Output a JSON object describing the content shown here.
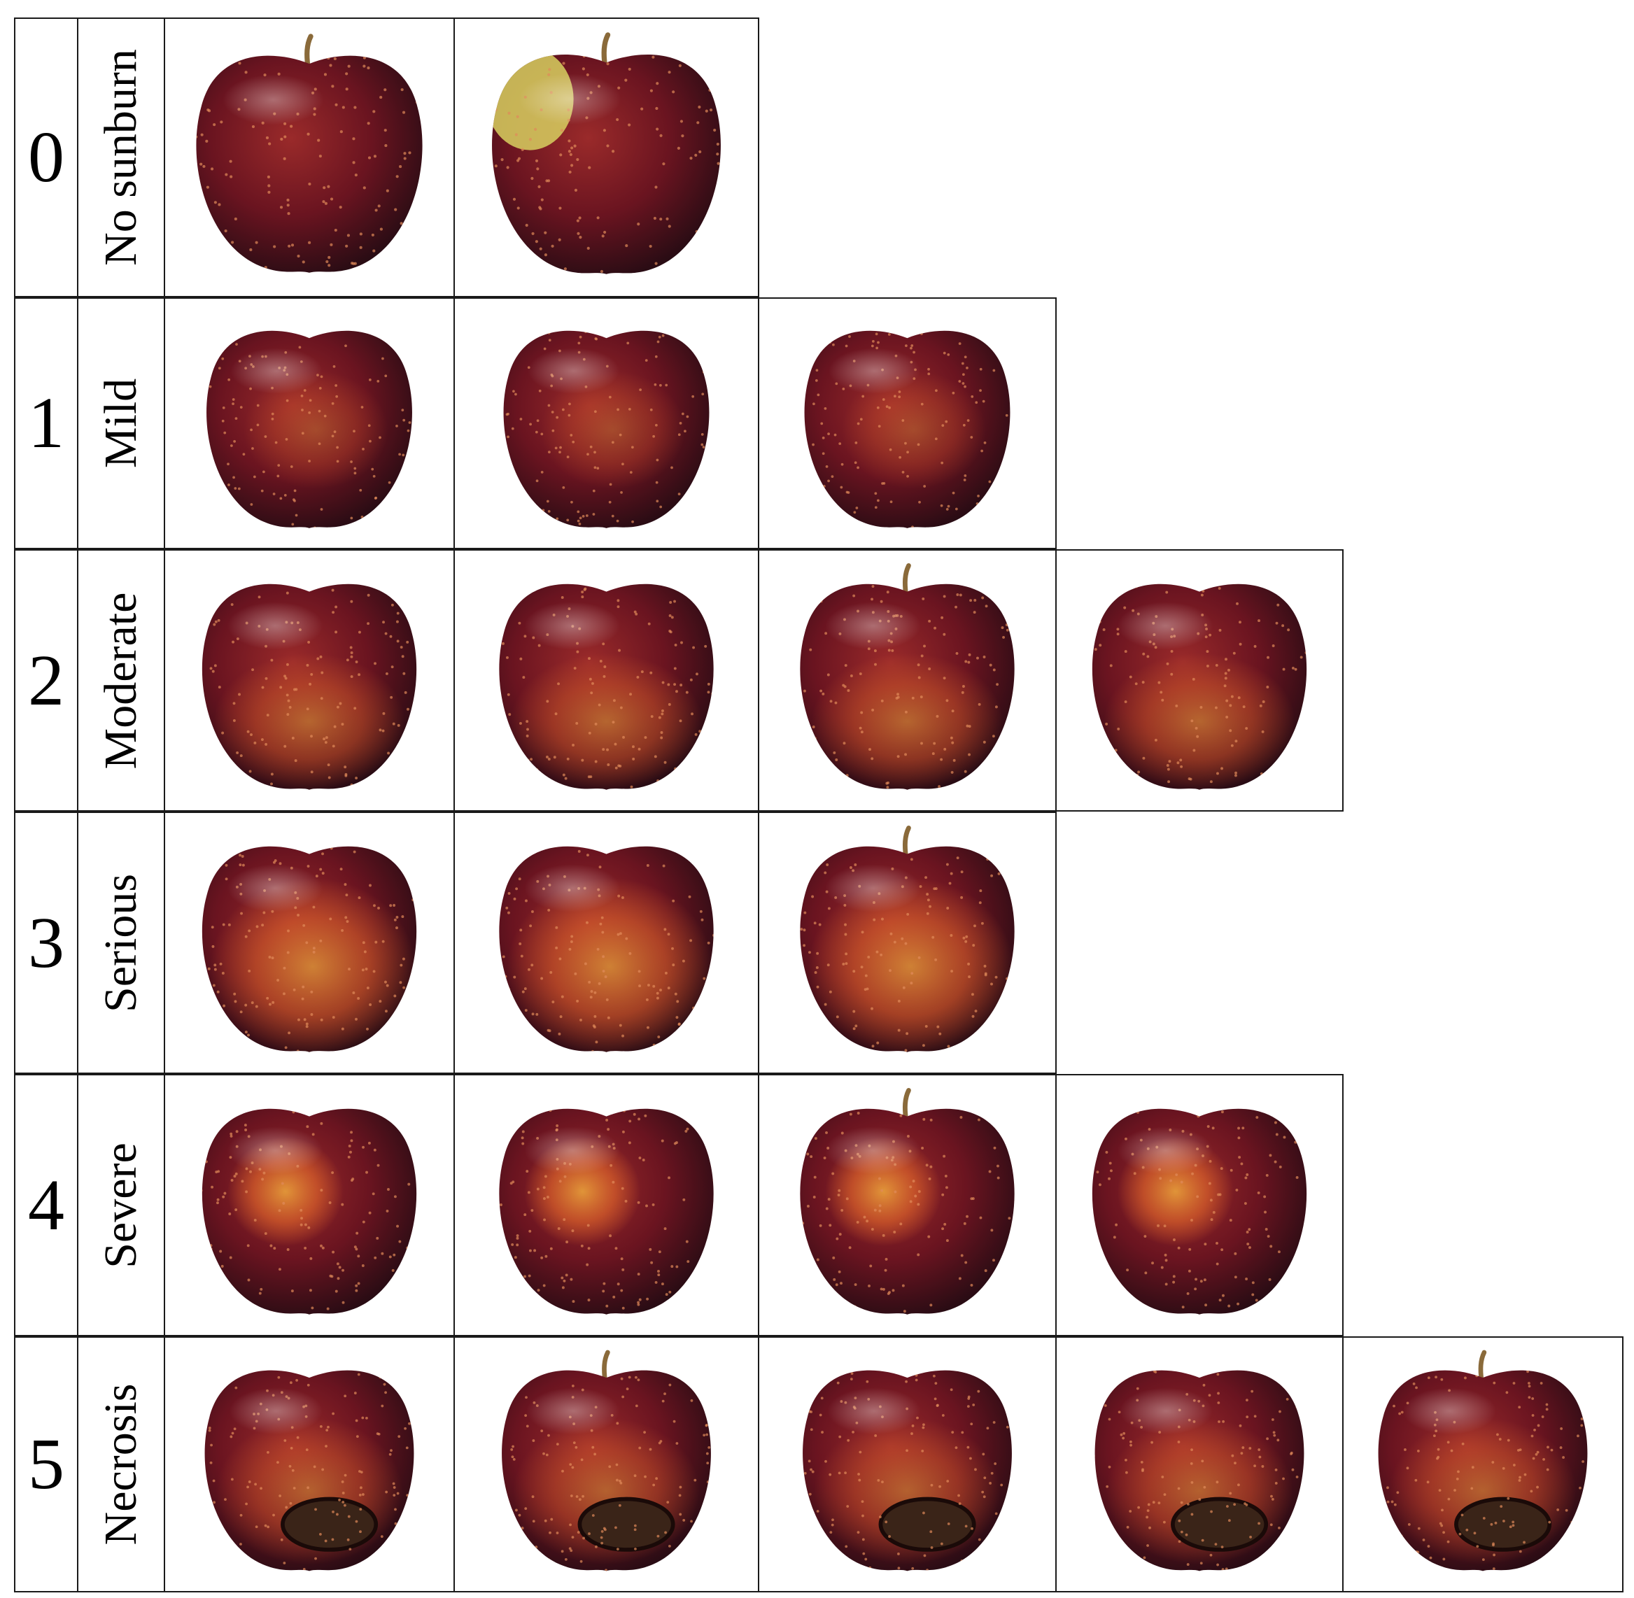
{
  "rows": [
    {
      "grade": "0",
      "label": "No sunburn",
      "photos": [
        {
          "alt": "apple-no-sunburn-1",
          "burn": "none",
          "stem": true,
          "cheek": "none"
        },
        {
          "alt": "apple-no-sunburn-2",
          "burn": "none",
          "stem": true,
          "cheek": "yellow-top-left"
        }
      ]
    },
    {
      "grade": "1",
      "label": "Mild",
      "photos": [
        {
          "alt": "apple-mild-1",
          "burn": "mild",
          "stem": false,
          "cheek": "none"
        },
        {
          "alt": "apple-mild-2",
          "burn": "mild",
          "stem": false,
          "cheek": "none"
        },
        {
          "alt": "apple-mild-3",
          "burn": "mild",
          "stem": false,
          "cheek": "none"
        }
      ]
    },
    {
      "grade": "2",
      "label": "Moderate",
      "photos": [
        {
          "alt": "apple-moderate-1",
          "burn": "moderate",
          "stem": false,
          "cheek": "none"
        },
        {
          "alt": "apple-moderate-2",
          "burn": "moderate",
          "stem": false,
          "cheek": "none"
        },
        {
          "alt": "apple-moderate-3",
          "burn": "moderate",
          "stem": true,
          "cheek": "none"
        },
        {
          "alt": "apple-moderate-4",
          "burn": "moderate",
          "stem": false,
          "cheek": "none"
        }
      ]
    },
    {
      "grade": "3",
      "label": "Serious",
      "photos": [
        {
          "alt": "apple-serious-1",
          "burn": "serious",
          "stem": false,
          "cheek": "none"
        },
        {
          "alt": "apple-serious-2",
          "burn": "serious",
          "stem": false,
          "cheek": "none"
        },
        {
          "alt": "apple-serious-3",
          "burn": "serious",
          "stem": true,
          "cheek": "none"
        }
      ]
    },
    {
      "grade": "4",
      "label": "Severe",
      "photos": [
        {
          "alt": "apple-severe-1",
          "burn": "severe",
          "stem": false,
          "cheek": "none"
        },
        {
          "alt": "apple-severe-2",
          "burn": "severe",
          "stem": false,
          "cheek": "none"
        },
        {
          "alt": "apple-severe-3",
          "burn": "severe",
          "stem": true,
          "cheek": "none"
        },
        {
          "alt": "apple-severe-4",
          "burn": "severe",
          "stem": false,
          "cheek": "none"
        }
      ]
    },
    {
      "grade": "5",
      "label": "Necrosis",
      "photos": [
        {
          "alt": "apple-necrosis-1",
          "burn": "necrosis",
          "stem": false,
          "cheek": "none"
        },
        {
          "alt": "apple-necrosis-2",
          "burn": "necrosis",
          "stem": true,
          "cheek": "none"
        },
        {
          "alt": "apple-necrosis-3",
          "burn": "necrosis",
          "stem": false,
          "cheek": "none"
        },
        {
          "alt": "apple-necrosis-4",
          "burn": "necrosis",
          "stem": false,
          "cheek": "none"
        },
        {
          "alt": "apple-necrosis-5",
          "burn": "necrosis",
          "stem": true,
          "cheek": "none"
        }
      ]
    }
  ],
  "colors": {
    "border": "#1a1a1a",
    "apple_dark": "#2a0c14",
    "apple_mid": "#6a1420",
    "apple_light": "#9a2a2a",
    "burn_orange": "#d8602a",
    "burn_yellow": "#e8a03a",
    "necrosis_brown": "#3a2418",
    "stem": "#8a6a3a",
    "cheek_yellow": "#d8d060"
  }
}
